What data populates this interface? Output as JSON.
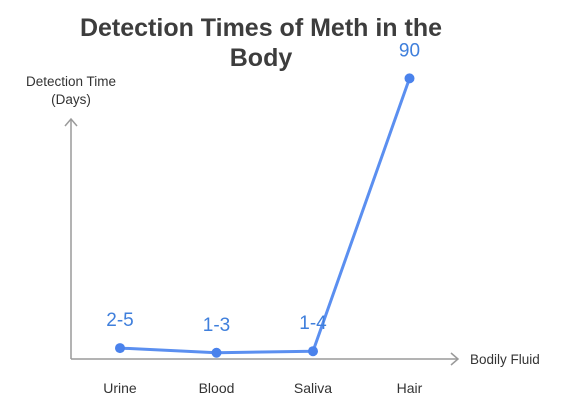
{
  "chart_data": {
    "type": "line",
    "title_lines": [
      "Detection Times of Meth in the",
      "Body"
    ],
    "ylabel_lines": [
      "Detection Time",
      "(Days)"
    ],
    "xlabel": "Bodily Fluid",
    "categories": [
      "Urine",
      "Blood",
      "Saliva",
      "Hair"
    ],
    "values": [
      3.5,
      2,
      2.5,
      90
    ],
    "data_labels": [
      "2-5",
      "1-3",
      "1-4",
      "90"
    ],
    "ylim": [
      0,
      110
    ],
    "grid": false,
    "legend": "none",
    "colors": {
      "line": "#5b8ff0",
      "point": "#4a82ec",
      "data_label": "#3f7fdc",
      "axis": "#9a9a9a",
      "title": "#3d3d3d",
      "text": "#333333"
    }
  }
}
